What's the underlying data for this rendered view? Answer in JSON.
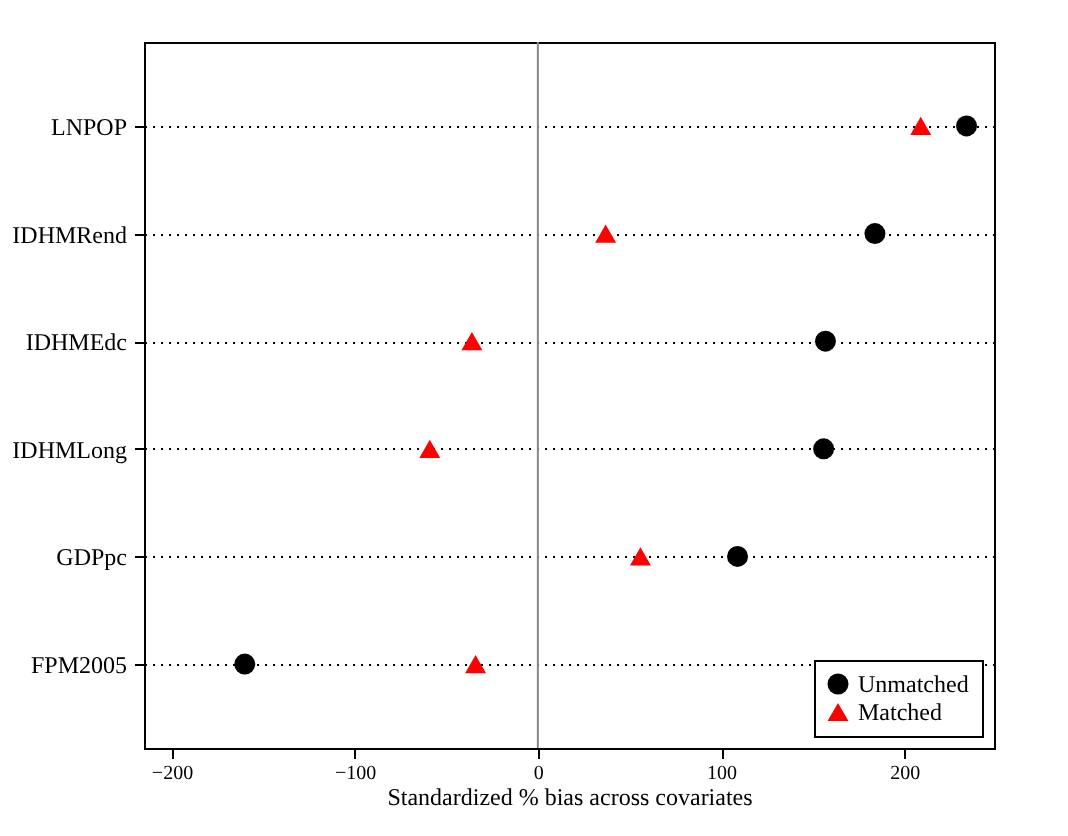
{
  "chart_data": {
    "type": "scatter",
    "orientation": "horizontal",
    "xlabel": "Standardized % bias across covariates",
    "categories": [
      "LNPOP",
      "IDHMRend",
      "IDHMEdc",
      "IDHMLong",
      "GDPpc",
      "FPM2005"
    ],
    "series": [
      {
        "name": "Unmatched",
        "color": "#000000",
        "marker": "circle",
        "values": [
          234,
          184,
          157,
          156,
          109,
          -160
        ]
      },
      {
        "name": "Matched",
        "color": "#ff0000",
        "marker": "triangle",
        "values": [
          209,
          37,
          -36,
          -59,
          56,
          -34
        ]
      }
    ],
    "xlim": [
      -215,
      249
    ],
    "xticks": [
      -200,
      -100,
      0,
      100,
      200
    ],
    "ref_lines": [
      {
        "axis": "x",
        "value": 0,
        "color": "#888888"
      }
    ],
    "grid": "y",
    "line_style": "dotted",
    "legend": "bottom right"
  }
}
